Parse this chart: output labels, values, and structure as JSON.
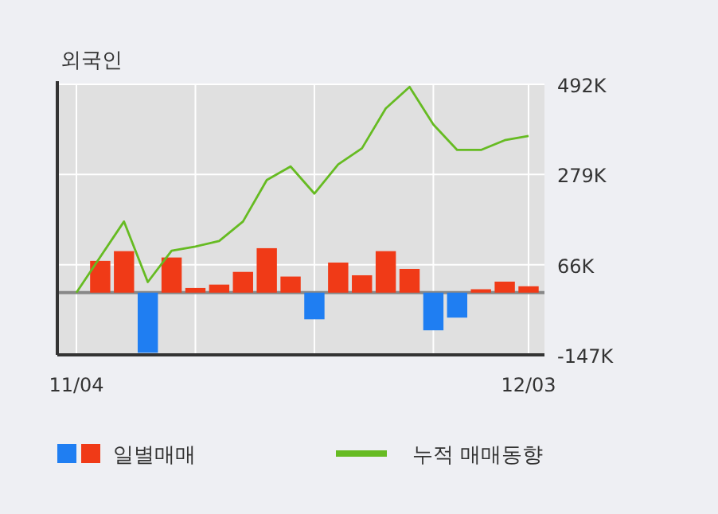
{
  "chart_data": {
    "type": "bar",
    "title": "외국인",
    "categories": [
      "11/04",
      null,
      null,
      null,
      null,
      null,
      null,
      null,
      null,
      null,
      null,
      null,
      null,
      null,
      null,
      null,
      null,
      null,
      null,
      "12/03"
    ],
    "series": [
      {
        "name": "일별매매",
        "colors": [
          "#f03a17",
          "#f03a17",
          "#f03a17",
          "#1f7ef2",
          "#f03a17",
          "#f03a17",
          "#f03a17",
          "#f03a17",
          "#f03a17",
          "#f03a17",
          "#1f7ef2",
          "#f03a17",
          "#f03a17",
          "#f03a17",
          "#f03a17",
          "#1f7ef2",
          "#1f7ef2",
          "#f03a17",
          "#f03a17",
          "#f03a17"
        ],
        "values": [
          null,
          75000,
          98000,
          -142000,
          83000,
          11000,
          19000,
          49000,
          105000,
          38000,
          -63000,
          71000,
          41000,
          98000,
          56000,
          -89000,
          -59000,
          8000,
          26000,
          15000
        ]
      },
      {
        "name": "누적 매매동향",
        "type": "line",
        "color": "#66bb22",
        "values": [
          0,
          84000,
          168000,
          25000,
          99000,
          109000,
          122000,
          168000,
          266000,
          298000,
          234000,
          303000,
          341000,
          435000,
          486000,
          397000,
          337000,
          337000,
          360000,
          370000
        ]
      }
    ],
    "ylim": [
      -147000,
      492000
    ],
    "yticks": [
      {
        "value": -147000,
        "label": "-147K"
      },
      {
        "value": 66000,
        "label": "66K"
      },
      {
        "value": 279000,
        "label": "279K"
      },
      {
        "value": 492000,
        "label": "492K"
      }
    ],
    "ref_lines": [
      {
        "axis": "y",
        "value": 0,
        "color": "#888888"
      }
    ],
    "grid": true,
    "legend": "bottom"
  }
}
